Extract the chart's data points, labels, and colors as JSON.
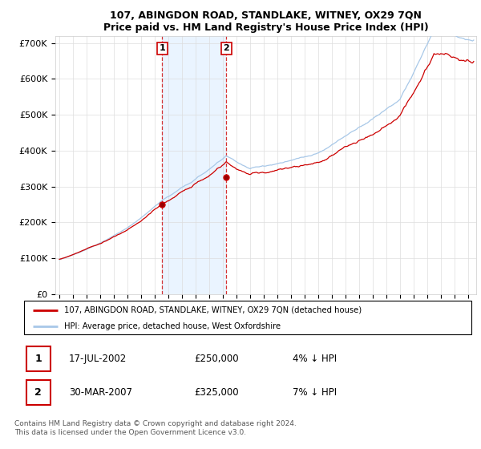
{
  "title": "107, ABINGDON ROAD, STANDLAKE, WITNEY, OX29 7QN",
  "subtitle": "Price paid vs. HM Land Registry's House Price Index (HPI)",
  "ylim": [
    0,
    720000
  ],
  "yticks": [
    0,
    100000,
    200000,
    300000,
    400000,
    500000,
    600000,
    700000
  ],
  "ytick_labels": [
    "£0",
    "£100K",
    "£200K",
    "£300K",
    "£400K",
    "£500K",
    "£600K",
    "£700K"
  ],
  "hpi_color": "#a8c8e8",
  "price_color": "#cc0000",
  "annotation_color": "#cc0000",
  "shade_color": "#ddeeff",
  "grid_color": "#dddddd",
  "background_color": "#ffffff",
  "legend_label_red": "107, ABINGDON ROAD, STANDLAKE, WITNEY, OX29 7QN (detached house)",
  "legend_label_blue": "HPI: Average price, detached house, West Oxfordshire",
  "transaction1_date": "17-JUL-2002",
  "transaction1_price": "£250,000",
  "transaction1_note": "4% ↓ HPI",
  "transaction2_date": "30-MAR-2007",
  "transaction2_price": "£325,000",
  "transaction2_note": "7% ↓ HPI",
  "t1_year": 2002.542,
  "t2_year": 2007.25,
  "t1_price": 250000,
  "t2_price": 325000,
  "footer": "Contains HM Land Registry data © Crown copyright and database right 2024.\nThis data is licensed under the Open Government Licence v3.0.",
  "x_start_year": 1995,
  "x_end_year": 2025
}
